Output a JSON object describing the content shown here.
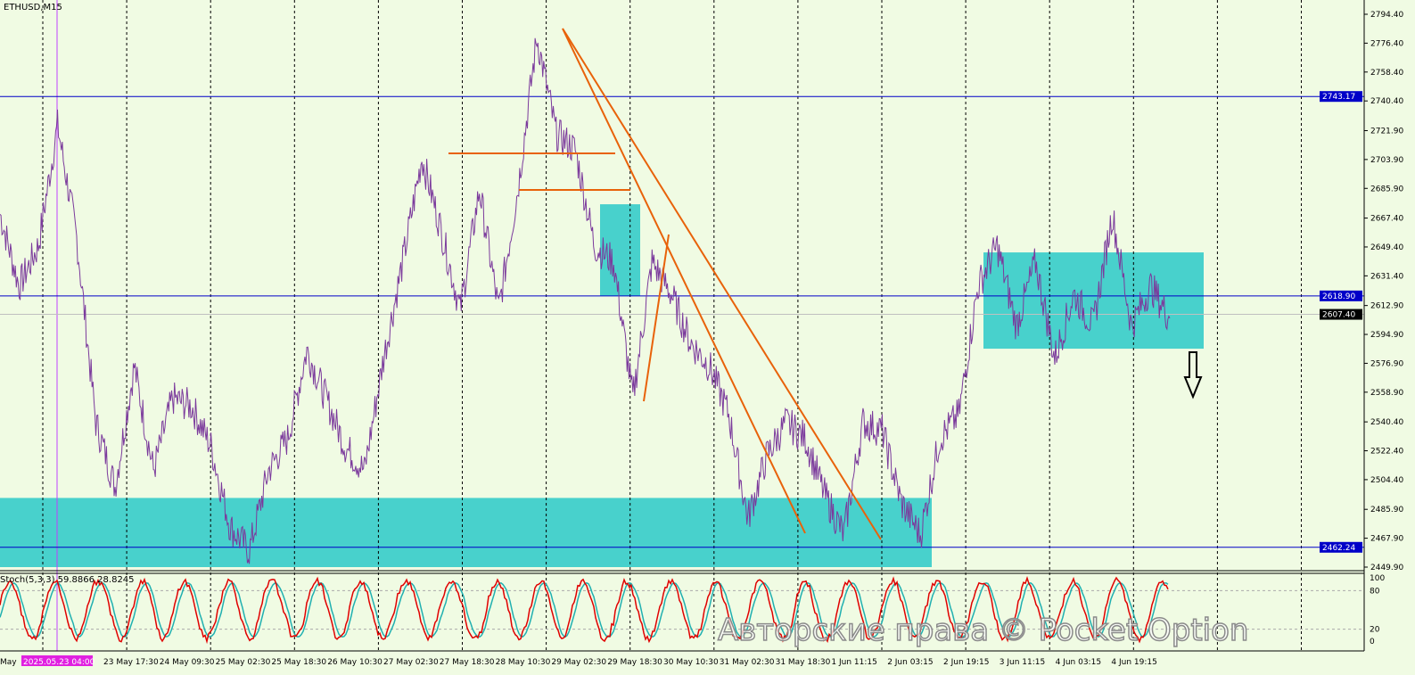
{
  "chart_data": {
    "type": "line",
    "title": "ETHUSD,M15",
    "ylim": [
      2449.9,
      2794.4
    ],
    "y_ticks": [
      "2794.40",
      "2776.40",
      "2758.40",
      "2740.40",
      "2721.90",
      "2703.90",
      "2685.90",
      "2667.40",
      "2649.40",
      "2631.40",
      "2612.90",
      "2594.90",
      "2576.90",
      "2558.90",
      "2540.40",
      "2522.40",
      "2504.40",
      "2485.90",
      "2467.90",
      "2449.90"
    ],
    "x_ticks": [
      "May",
      "2025.05.23 04:00",
      "23 May 17:30",
      "24 May 09:30",
      "25 May 02:30",
      "25 May 18:30",
      "26 May 10:30",
      "27 May 02:30",
      "27 May 18:30",
      "28 May 10:30",
      "29 May 02:30",
      "29 May 18:30",
      "30 May 10:30",
      "31 May 02:30",
      "31 May 18:30",
      "1 Jun 11:15",
      "2 Jun 03:15",
      "2 Jun 19:15",
      "3 Jun 11:15",
      "4 Jun 03:15",
      "4 Jun 19:15"
    ],
    "series": [
      {
        "color": "#7b3a9c",
        "values": [
          2670,
          2625,
          2650,
          2725,
          2655,
          2540,
          2500,
          2575,
          2510,
          2555,
          2550,
          2525,
          2475,
          2460,
          2510,
          2530,
          2585,
          2555,
          2525,
          2510,
          2580,
          2640,
          2705,
          2660,
          2610,
          2685,
          2610,
          2685,
          2780,
          2720,
          2710,
          2650,
          2640,
          2555,
          2640,
          2620,
          2590,
          2575,
          2545,
          2480,
          2520,
          2540,
          2530,
          2495,
          2470,
          2540,
          2535,
          2490,
          2470,
          2530,
          2545,
          2625,
          2650,
          2600,
          2640,
          2580,
          2620,
          2600,
          2670,
          2600,
          2625,
          2605
        ]
      }
    ],
    "levels": {
      "blue": [
        {
          "label": "2743.17",
          "value": 2743.17
        },
        {
          "label": "2618.90",
          "value": 2618.9
        },
        {
          "label": "2462.24",
          "value": 2462.24
        }
      ],
      "current": {
        "label": "2607.40",
        "value": 2607.4
      }
    },
    "zones": [
      {
        "from": 2449.9,
        "to": 2493
      },
      {
        "from": 2618.9,
        "to": 2676
      },
      {
        "from": 2586,
        "to": 2646
      }
    ],
    "zone_color": "#48d1cc",
    "trendline_color": "#e8620a",
    "level_color": "#0000c8",
    "indicator": {
      "label": "Stoch(5,3,3) 59.8866 28.8245",
      "levels": [
        "100",
        "80",
        "20",
        "0"
      ],
      "main_color": "#e00000",
      "signal_color": "#20b0b0"
    }
  },
  "watermark": "Авторские права © Pocket Option"
}
